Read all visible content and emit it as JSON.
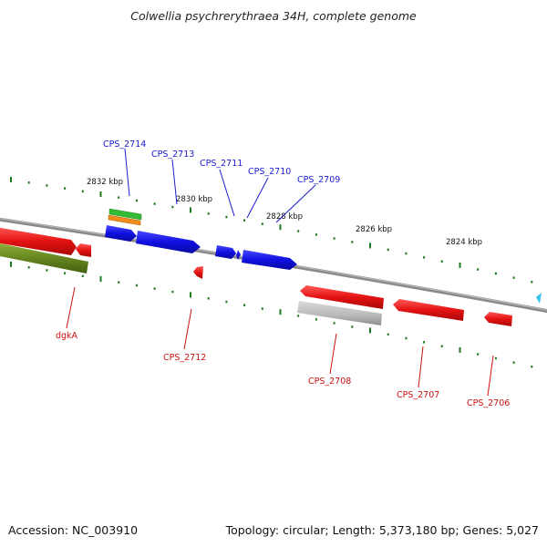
{
  "title": "Colwellia psychrerythraea 34H, complete genome",
  "footer": {
    "accession": "Accession: NC_003910",
    "summary": "Topology: circular; Length: 5,373,180 bp; Genes: 5,027"
  },
  "scale_labels": [
    "2832 kbp",
    "2830 kbp",
    "2828 kbp",
    "2826 kbp",
    "2824 kbp"
  ],
  "gene_labels_top": [
    "CPS_2714",
    "CPS_2713",
    "CPS_2711",
    "CPS_2710",
    "CPS_2709"
  ],
  "gene_labels_bottom": [
    "dgkA",
    "CPS_2712",
    "CPS_2708",
    "CPS_2707",
    "CPS_2706"
  ],
  "colors": {
    "backbone": "#7a7a7a",
    "forward_gene": "#1010e0",
    "reverse_gene": "#e01010",
    "tick": "#1e7a1e",
    "label_top": "#1a1ad0",
    "label_bottom": "#cc1111",
    "olive_feature": "#6b8e23",
    "grey_feature": "#b8b8b8",
    "green_feature": "#33bb33",
    "orange_feature": "#f08c1a",
    "cyan_marker": "#33c4f0"
  }
}
